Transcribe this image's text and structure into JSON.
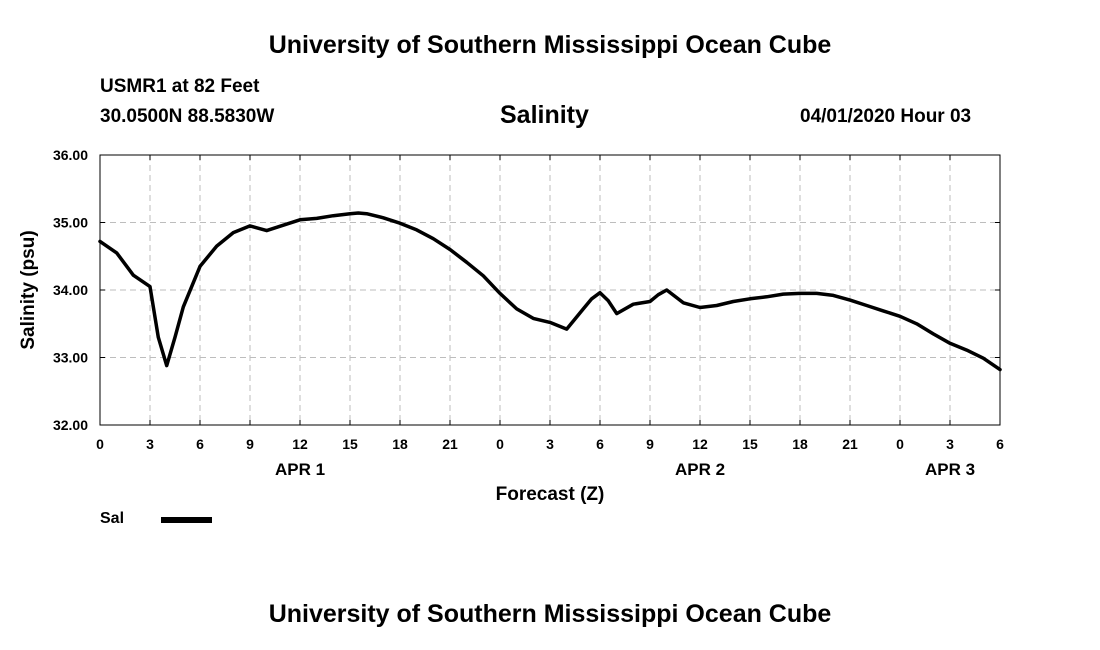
{
  "header": {
    "title": "University of Southern Mississippi Ocean Cube",
    "station": "USMR1 at 82 Feet",
    "coords": "30.0500N 88.5830W",
    "variable": "Salinity",
    "datetime": "04/01/2020 Hour 03"
  },
  "footer": {
    "title": "University of Southern Mississippi Ocean Cube"
  },
  "legend": {
    "label": "Sal",
    "color": "#000000"
  },
  "chart_data": {
    "type": "line",
    "title": "Salinity",
    "xlabel": "Forecast (Z)",
    "ylabel": "Salinity (psu)",
    "xlim": [
      0,
      54
    ],
    "ylim": [
      32.0,
      36.0
    ],
    "grid": true,
    "x_ticks": [
      0,
      3,
      6,
      9,
      12,
      15,
      18,
      21,
      24,
      27,
      30,
      33,
      36,
      39,
      42,
      45,
      48,
      51,
      54
    ],
    "x_tick_labels": [
      "0",
      "3",
      "6",
      "9",
      "12",
      "15",
      "18",
      "21",
      "0",
      "3",
      "6",
      "9",
      "12",
      "15",
      "18",
      "21",
      "0",
      "3",
      "6"
    ],
    "day_labels": [
      {
        "label": "APR 1",
        "x": 12
      },
      {
        "label": "APR 2",
        "x": 36
      },
      {
        "label": "APR 3",
        "x": 51
      }
    ],
    "y_ticks": [
      32.0,
      33.0,
      34.0,
      35.0,
      36.0
    ],
    "y_tick_labels": [
      "32.00",
      "33.00",
      "34.00",
      "35.00",
      "36.00"
    ],
    "series": [
      {
        "name": "Sal",
        "color": "#000000",
        "x": [
          0,
          1,
          2,
          3,
          3.5,
          4,
          4.5,
          5,
          6,
          7,
          8,
          9,
          10,
          11,
          12,
          13,
          14,
          15,
          15.5,
          16,
          17,
          18,
          19,
          20,
          21,
          22,
          23,
          24,
          25,
          26,
          27,
          28,
          29,
          29.5,
          30,
          30.5,
          31,
          32,
          33,
          33.5,
          34,
          35,
          36,
          37,
          38,
          39,
          40,
          41,
          42,
          43,
          44,
          45,
          46,
          47,
          48,
          49,
          50,
          51,
          52,
          53,
          54
        ],
        "values": [
          34.72,
          34.55,
          34.22,
          34.05,
          33.3,
          32.88,
          33.3,
          33.75,
          34.35,
          34.65,
          34.85,
          34.95,
          34.88,
          34.96,
          35.04,
          35.06,
          35.1,
          35.13,
          35.14,
          35.13,
          35.07,
          34.99,
          34.89,
          34.76,
          34.6,
          34.41,
          34.21,
          33.95,
          33.72,
          33.58,
          33.52,
          33.42,
          33.72,
          33.87,
          33.96,
          33.84,
          33.65,
          33.79,
          33.83,
          33.93,
          34.0,
          33.81,
          33.74,
          33.77,
          33.83,
          33.87,
          33.9,
          33.94,
          33.95,
          33.95,
          33.92,
          33.85,
          33.77,
          33.69,
          33.61,
          33.5,
          33.35,
          33.21,
          33.11,
          32.99,
          32.82
        ]
      }
    ]
  }
}
